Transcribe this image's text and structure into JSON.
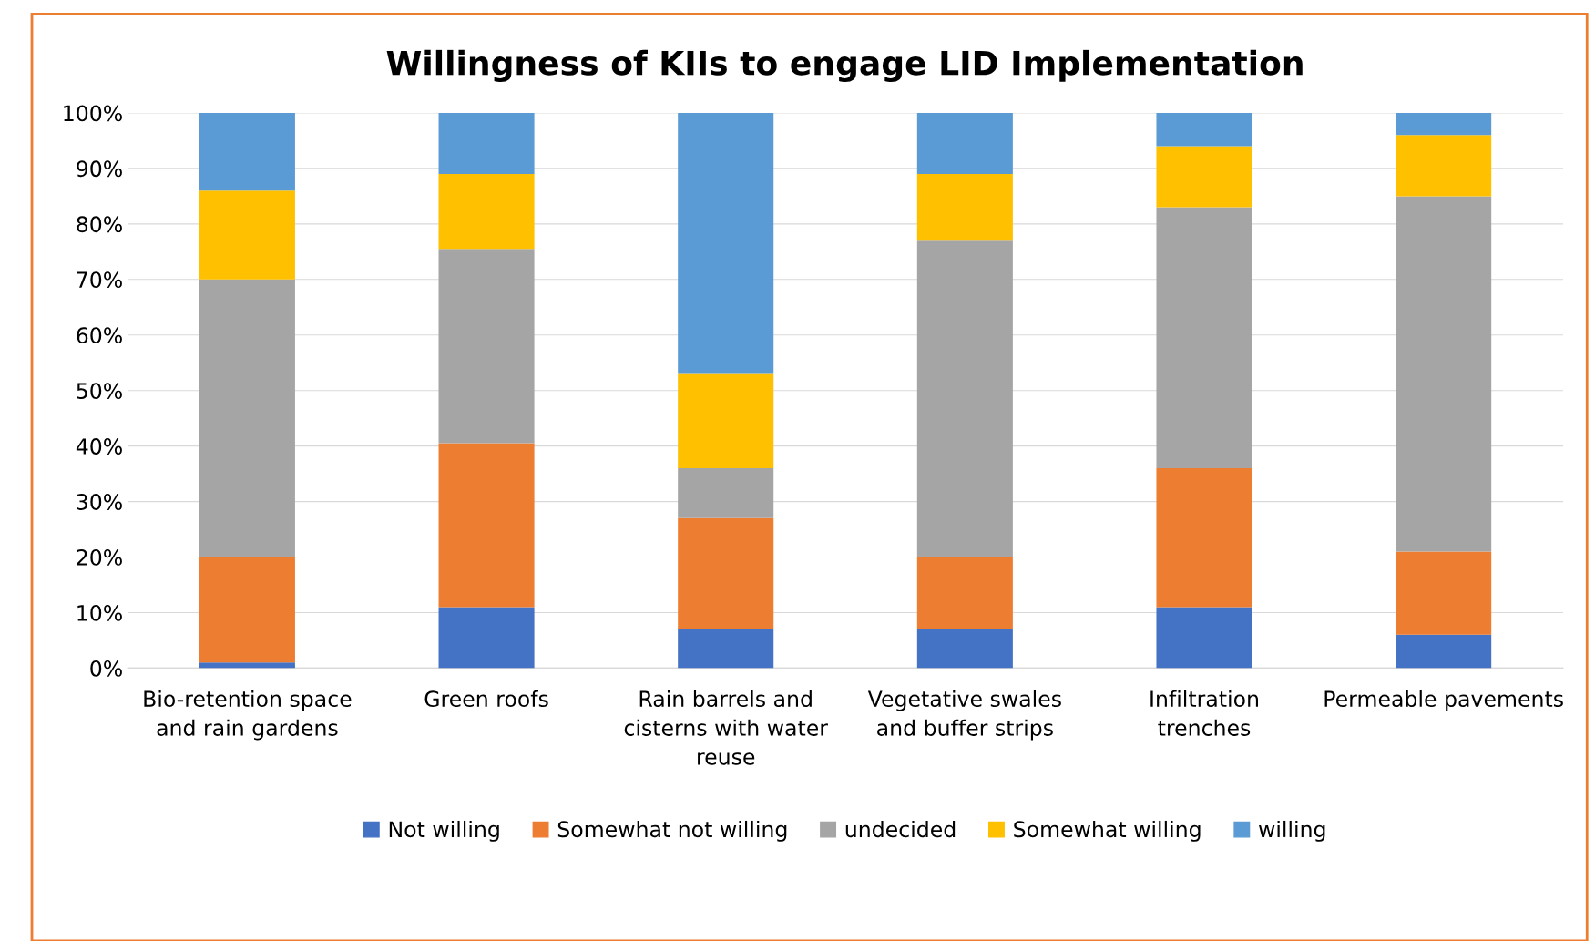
{
  "chart_data": {
    "type": "bar",
    "stacked": true,
    "title": "Willingness of KIIs to engage LID Implementation",
    "categories": [
      "Bio-retention space and rain gardens",
      "Green roofs",
      "Rain barrels and cisterns with water reuse",
      "Vegetative swales and buffer strips",
      "Infiltration trenches",
      "Permeable pavements"
    ],
    "series": [
      {
        "name": "Not willing",
        "color": "#4472c4",
        "values": [
          1,
          11,
          7,
          7,
          11,
          6
        ]
      },
      {
        "name": "Somewhat not willing",
        "color": "#ed7d31",
        "values": [
          19,
          29.5,
          20,
          13,
          25,
          15
        ]
      },
      {
        "name": "undecided",
        "color": "#a5a5a5",
        "values": [
          50,
          35,
          9,
          57,
          47,
          64
        ]
      },
      {
        "name": "Somewhat willing",
        "color": "#ffc000",
        "values": [
          16,
          13.5,
          17,
          12,
          11,
          11
        ]
      },
      {
        "name": "willing",
        "color": "#5b9bd5",
        "values": [
          14,
          11,
          47,
          11,
          6,
          4
        ]
      }
    ],
    "ylim": [
      0,
      100
    ],
    "yticks": [
      {
        "value": 0,
        "label": "0%"
      },
      {
        "value": 10,
        "label": "10%"
      },
      {
        "value": 20,
        "label": "20%"
      },
      {
        "value": 30,
        "label": "30%"
      },
      {
        "value": 40,
        "label": "40%"
      },
      {
        "value": 50,
        "label": "50%"
      },
      {
        "value": 60,
        "label": "60%"
      },
      {
        "value": 70,
        "label": "70%"
      },
      {
        "value": 80,
        "label": "80%"
      },
      {
        "value": 90,
        "label": "90%"
      },
      {
        "value": 100,
        "label": "100%"
      }
    ],
    "grid": "y",
    "legend": "bottom"
  }
}
